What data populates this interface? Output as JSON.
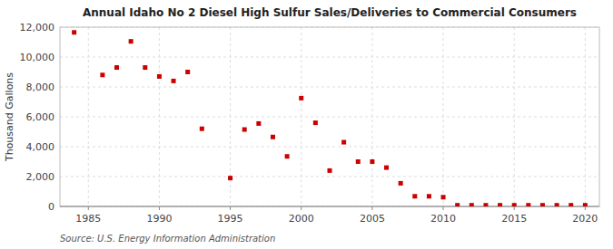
{
  "chart_data": {
    "type": "scatter",
    "title": "Annual Idaho No 2 Diesel High Sulfur Sales/Deliveries to Commercial Consumers",
    "ylabel": "Thousand Gallons",
    "source": "Source: U.S. Energy Information Administration",
    "x": [
      1984,
      1986,
      1987,
      1988,
      1989,
      1990,
      1991,
      1992,
      1993,
      1995,
      1996,
      1997,
      1998,
      1999,
      2000,
      2001,
      2002,
      2003,
      2004,
      2005,
      2006,
      2007,
      2008,
      2009,
      2010,
      2011,
      2012,
      2013,
      2014,
      2015,
      2016,
      2017,
      2018,
      2019,
      2020
    ],
    "values": [
      11650,
      8800,
      9300,
      11050,
      9300,
      8700,
      8400,
      9000,
      5200,
      1900,
      5150,
      5550,
      4650,
      3350,
      7250,
      5600,
      2400,
      4300,
      3000,
      3000,
      2600,
      1550,
      680,
      680,
      620,
      80,
      80,
      80,
      80,
      80,
      80,
      80,
      80,
      80,
      80
    ],
    "color": "#cc0000",
    "marker": "square",
    "grid": true,
    "xlim": [
      1983,
      2021
    ],
    "ylim": [
      0,
      12000
    ],
    "xticks": [
      1985,
      1990,
      1995,
      2000,
      2005,
      2010,
      2015,
      2020
    ],
    "yticks": [
      0,
      {
        "value": 2000,
        "label": "2,000"
      },
      {
        "value": 4000,
        "label": "4,000"
      },
      {
        "value": 6000,
        "label": "6,000"
      },
      {
        "value": 8000,
        "label": "8,000"
      },
      {
        "value": 10000,
        "label": "10,000"
      },
      {
        "value": 12000,
        "label": "12,000"
      }
    ]
  }
}
